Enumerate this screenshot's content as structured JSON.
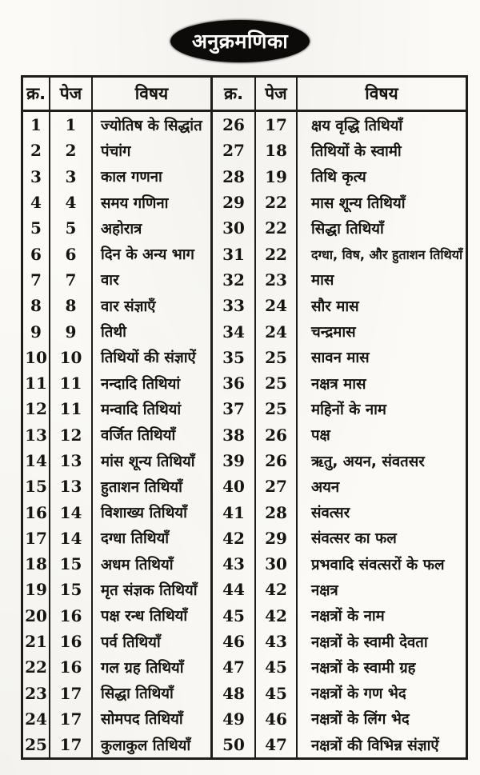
{
  "page_title": "अनुक्रमणिका",
  "accent_colors": {
    "paper": "#fbfaf6",
    "ink": "#17150f",
    "title_badge_bg": "#0c0b0a",
    "title_badge_text": "#fdfdfb"
  },
  "table": {
    "headers": {
      "serial": "क्र.",
      "page": "पेज",
      "subject": "विषय"
    },
    "left_rows": [
      [
        "1",
        "1",
        "ज्योतिष के सिद्धांत"
      ],
      [
        "2",
        "2",
        "पंचांग"
      ],
      [
        "3",
        "3",
        "काल गणना"
      ],
      [
        "4",
        "4",
        "समय गणिना"
      ],
      [
        "5",
        "5",
        "अहोरात्र"
      ],
      [
        "6",
        "6",
        "दिन के अन्य भाग"
      ],
      [
        "7",
        "7",
        "वार"
      ],
      [
        "8",
        "8",
        "वार संज्ञाएँ"
      ],
      [
        "9",
        "9",
        "तिथी"
      ],
      [
        "10",
        "10",
        "तिथियों की संज्ञाऐं"
      ],
      [
        "11",
        "11",
        "नन्दादि तिथियां"
      ],
      [
        "12",
        "11",
        "मन्वादि तिथियां"
      ],
      [
        "13",
        "12",
        "वर्जित तिथियाँ"
      ],
      [
        "14",
        "13",
        "मांस शून्य तिथियाँ"
      ],
      [
        "15",
        "13",
        "हुताशन तिथियाँ"
      ],
      [
        "16",
        "14",
        "विशाख्य तिथियाँ"
      ],
      [
        "17",
        "14",
        "दग्धा तिथियाँ"
      ],
      [
        "18",
        "15",
        "अधम तिथियाँ"
      ],
      [
        "19",
        "15",
        "मृत संज्ञक तिथियाँ"
      ],
      [
        "20",
        "16",
        "पक्ष रन्ध तिथियाँ"
      ],
      [
        "21",
        "16",
        "पर्व तिथियाँ"
      ],
      [
        "22",
        "16",
        "गल ग्रह तिथियाँ"
      ],
      [
        "23",
        "17",
        "सिद्धा तिथियाँ"
      ],
      [
        "24",
        "17",
        "सोमपद तिथियाँ"
      ],
      [
        "25",
        "17",
        "कुलाकुल तिथियाँ"
      ]
    ],
    "right_rows": [
      [
        "26",
        "17",
        "क्षय वृद्धि तिथियाँ"
      ],
      [
        "27",
        "18",
        "तिथियों के स्वामी"
      ],
      [
        "28",
        "19",
        "तिथि कृत्य"
      ],
      [
        "29",
        "22",
        "मास शून्य तिथियाँ"
      ],
      [
        "30",
        "22",
        "सिद्धा तिथियाँ"
      ],
      [
        "31",
        "22",
        "दग्धा, विष, और हुताशन तिथियाँ"
      ],
      [
        "32",
        "23",
        "मास"
      ],
      [
        "33",
        "24",
        "सौर मास"
      ],
      [
        "34",
        "24",
        "चन्द्रमास"
      ],
      [
        "35",
        "25",
        "सावन मास"
      ],
      [
        "36",
        "25",
        "नक्षत्र मास"
      ],
      [
        "37",
        "25",
        "महिनों के नाम"
      ],
      [
        "38",
        "26",
        "पक्ष"
      ],
      [
        "39",
        "26",
        "ऋतु, अयन, संवतसर"
      ],
      [
        "40",
        "27",
        "अयन"
      ],
      [
        "41",
        "28",
        "संवत्सर"
      ],
      [
        "42",
        "29",
        "संवत्सर का फल"
      ],
      [
        "43",
        "30",
        "प्रभवादि संवत्सरों के फल"
      ],
      [
        "44",
        "42",
        "नक्षत्र"
      ],
      [
        "45",
        "42",
        "नक्षत्रों के नाम"
      ],
      [
        "46",
        "43",
        "नक्षत्रों के स्वामी देवता"
      ],
      [
        "47",
        "45",
        "नक्षत्रों के स्वामी ग्रह"
      ],
      [
        "48",
        "45",
        "नक्षत्रों के गण भेद"
      ],
      [
        "49",
        "46",
        "नक्षत्रों के लिंग भेद"
      ],
      [
        "50",
        "47",
        "नक्षत्रों की विभिन्न संज्ञाऐं"
      ]
    ]
  }
}
